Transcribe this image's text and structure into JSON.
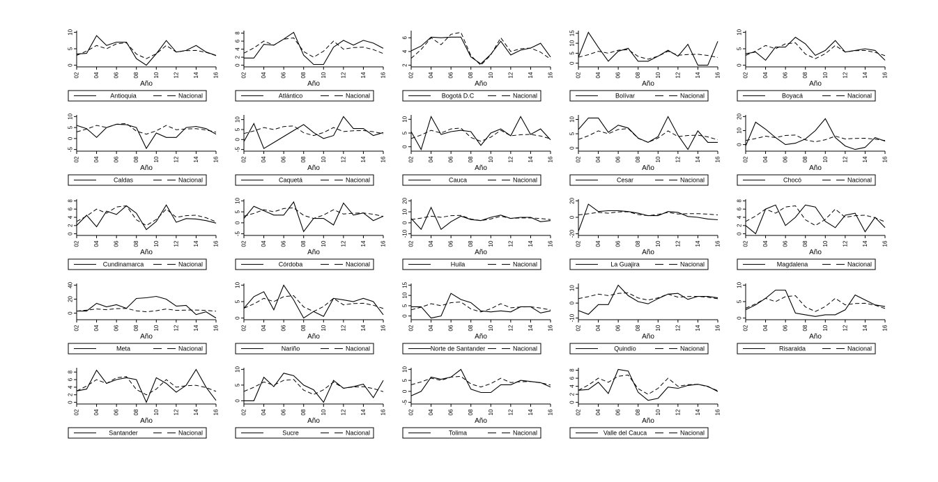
{
  "figure_title": "",
  "chart_data": {
    "type": "line",
    "x": [
      2002,
      2003,
      2004,
      2005,
      2006,
      2007,
      2008,
      2009,
      2010,
      2011,
      2012,
      2013,
      2014,
      2015,
      2016
    ],
    "x_tick_labels": [
      "02",
      "04",
      "06",
      "08",
      "10",
      "12",
      "14",
      "16"
    ],
    "xlabel": "Año",
    "nacional_label": "Nacional",
    "legend_position": "below each panel",
    "grid": false,
    "line_color": "#000000",
    "background_color": "#ffffff",
    "layout": {
      "rows": 5,
      "cols": 5,
      "panels_in_last_row": 4
    },
    "nacional_values": [
      3,
      4.3,
      6,
      5,
      6.5,
      6.8,
      3.4,
      2,
      3.5,
      6,
      4,
      4.4,
      4.5,
      3.9,
      2.9
    ],
    "panels": [
      {
        "title": "Antioquia",
        "yticks": [
          0,
          5,
          10
        ],
        "values": [
          3.4,
          3.6,
          9,
          6,
          7,
          7,
          2,
          0,
          3.5,
          7.5,
          4,
          4.5,
          6,
          4,
          3
        ]
      },
      {
        "title": "Atlántico",
        "yticks": [
          0,
          2,
          4,
          6,
          8
        ],
        "values": [
          1.8,
          1.8,
          5.2,
          5,
          6.5,
          8.2,
          2.5,
          0.2,
          0.2,
          4.5,
          6.2,
          5,
          6.2,
          5.5,
          4.2
        ]
      },
      {
        "title": "Bogotá D.C",
        "yticks": [
          2,
          4,
          6
        ],
        "values": [
          4.1,
          4.8,
          6.1,
          6,
          6.1,
          6.1,
          3.2,
          2.2,
          3.6,
          5.5,
          3.5,
          4.2,
          4.5,
          5.2,
          3.2
        ]
      },
      {
        "title": "Bolívar",
        "yticks": [
          0,
          5,
          10,
          15
        ],
        "values": [
          3,
          15.5,
          8,
          1,
          6,
          7.5,
          1,
          1,
          3.5,
          6.5,
          3.5,
          9.5,
          -1,
          -1,
          11
        ]
      },
      {
        "title": "Boyacá",
        "yticks": [
          0,
          5,
          10
        ],
        "values": [
          3.5,
          4,
          1.5,
          5.5,
          5.5,
          8.5,
          6.5,
          3,
          4.5,
          7.5,
          4,
          4.5,
          5,
          4.5,
          1.5
        ]
      },
      {
        "title": "Caldas",
        "yticks": [
          -5,
          0,
          5,
          10
        ],
        "values": [
          6,
          4.5,
          0.5,
          5,
          6.5,
          6.3,
          5,
          -4.5,
          2.5,
          0.5,
          0.5,
          5,
          5.5,
          4.5,
          2
        ]
      },
      {
        "title": "Caquetá",
        "yticks": [
          -5,
          0,
          5,
          10
        ],
        "values": [
          -1,
          8,
          -4.5,
          -1.5,
          1.5,
          4.5,
          7.5,
          3.5,
          0.5,
          2,
          11.5,
          5.5,
          5.5,
          2,
          3.5
        ]
      },
      {
        "title": "Cauca",
        "yticks": [
          0,
          5,
          10
        ],
        "values": [
          5.5,
          -1,
          11,
          4.5,
          5.5,
          6,
          5.5,
          0.5,
          5,
          6.5,
          4,
          11,
          4.5,
          6.5,
          2.5
        ]
      },
      {
        "title": "Cesar",
        "yticks": [
          0,
          5,
          10
        ],
        "values": [
          6.5,
          10.5,
          10.5,
          5.5,
          8,
          7,
          3.5,
          2,
          4,
          11,
          4.5,
          -0.5,
          6,
          2,
          2
        ]
      },
      {
        "title": "Chocó",
        "yticks": [
          0,
          10,
          20
        ],
        "values": [
          -1,
          16,
          11,
          5,
          0,
          1,
          4,
          10,
          18.5,
          5,
          -1,
          -3.5,
          -2,
          5,
          2.5
        ]
      },
      {
        "title": "Cundinamarca",
        "yticks": [
          0,
          2,
          4,
          6,
          8
        ],
        "values": [
          2,
          4.5,
          1.7,
          5.5,
          4.7,
          6.8,
          5,
          1,
          3,
          7,
          2.8,
          3.7,
          3.6,
          3.2,
          2.6
        ]
      },
      {
        "title": "Córdoba",
        "yticks": [
          -5,
          0,
          5,
          10
        ],
        "values": [
          2,
          7.5,
          5.5,
          3.5,
          3.5,
          9.5,
          -4,
          2,
          2,
          -1,
          9,
          3.5,
          4.5,
          1,
          3
        ]
      },
      {
        "title": "Huila",
        "yticks": [
          -10,
          0,
          10,
          20
        ],
        "values": [
          4,
          -6,
          14,
          -6,
          1,
          6,
          3,
          2,
          5,
          7,
          4,
          5,
          5,
          1,
          2
        ]
      },
      {
        "title": "La Guajira",
        "yticks": [
          -20,
          0,
          20
        ],
        "values": [
          -17,
          16,
          7,
          8,
          8,
          7,
          5,
          2,
          2,
          7,
          6,
          1,
          0,
          -2,
          -3
        ]
      },
      {
        "title": "Magdalena",
        "yticks": [
          0,
          2,
          4,
          6,
          8
        ],
        "values": [
          2,
          0,
          6,
          7,
          2,
          4,
          7,
          6.5,
          3,
          1.5,
          4.5,
          5,
          0.5,
          4,
          1.5
        ]
      },
      {
        "title": "Meta",
        "yticks": [
          0,
          20,
          40
        ],
        "values": [
          3,
          3,
          14,
          9,
          12,
          7,
          21,
          22,
          24,
          20,
          10,
          11,
          -2,
          2,
          -7
        ]
      },
      {
        "title": "Nariño",
        "yticks": [
          0,
          5,
          10
        ],
        "values": [
          3,
          6.5,
          8,
          2.5,
          10,
          5.5,
          0,
          2,
          0.5,
          6,
          5.5,
          5,
          6,
          5,
          1
        ]
      },
      {
        "title": "Norte de Santander",
        "yticks": [
          0,
          5,
          10,
          15
        ],
        "values": [
          4.5,
          4.5,
          -1,
          0,
          11,
          8,
          6.5,
          2.5,
          2,
          2.5,
          2,
          4.5,
          4.5,
          1.5,
          2.5
        ]
      },
      {
        "title": "Quindío",
        "yticks": [
          -10,
          0,
          10
        ],
        "values": [
          -5,
          -7.5,
          -1,
          -1,
          12,
          5,
          1,
          -0.5,
          3,
          6,
          6.5,
          2.5,
          4.5,
          4.5,
          3.5
        ]
      },
      {
        "title": "Risaralda",
        "yticks": [
          0,
          5,
          10
        ],
        "values": [
          2.5,
          4,
          6,
          8.5,
          8.5,
          1.5,
          1,
          0.5,
          1,
          1,
          2.5,
          7,
          5.5,
          4,
          3.5
        ]
      },
      {
        "title": "Santander",
        "yticks": [
          0,
          2,
          4,
          6,
          8
        ],
        "values": [
          3,
          3.5,
          8.5,
          5,
          6,
          6.5,
          6,
          0,
          6.5,
          5,
          2.7,
          4.5,
          8.7,
          4,
          0.5
        ]
      },
      {
        "title": "Sucre",
        "yticks": [
          0,
          5,
          10
        ],
        "values": [
          0,
          0,
          7.5,
          4.5,
          8.8,
          8,
          5,
          3.5,
          -0.5,
          6.5,
          4,
          4.5,
          5.3,
          1,
          6.5
        ]
      },
      {
        "title": "Tolima",
        "yticks": [
          -5,
          0,
          5,
          10
        ],
        "values": [
          -2,
          0,
          6.5,
          5.5,
          6.5,
          10,
          1,
          -0.5,
          -0.5,
          3,
          3,
          5,
          4.5,
          4,
          2
        ]
      },
      {
        "title": "Valle del Cauca",
        "yticks": [
          0,
          2,
          4,
          6,
          8
        ],
        "values": [
          3,
          3.2,
          5,
          2.2,
          8.2,
          7.8,
          2.5,
          0.5,
          1,
          3.8,
          3.5,
          4.2,
          4.5,
          4,
          2.7
        ]
      }
    ]
  }
}
